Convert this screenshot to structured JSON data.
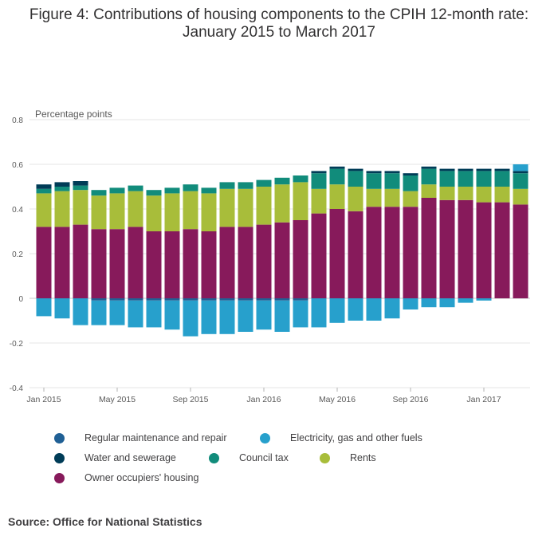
{
  "figure": {
    "title_line1": "Figure 4: Contributions of housing components to the CPIH 12-month rate:",
    "title_line2": "January 2015 to March 2017",
    "source": "Source: Office for National Statistics"
  },
  "chart_data": {
    "type": "bar",
    "stacked": true,
    "title": "Figure 4: Contributions of housing components to the CPIH 12-month rate: January 2015 to March 2017",
    "ylabel": "Percentage points",
    "ylim": [
      -0.4,
      0.8
    ],
    "yticks": [
      0.8,
      0.6,
      0.4,
      0.2,
      0,
      -0.2,
      -0.4
    ],
    "ytick_labels": [
      "0.8",
      "0.6",
      "0.4",
      "0.2",
      "0",
      "-0.2",
      "-0.4"
    ],
    "xtick_labels": [
      {
        "index": 0,
        "label": "Jan 2015"
      },
      {
        "index": 4,
        "label": "May 2015"
      },
      {
        "index": 8,
        "label": "Sep 2015"
      },
      {
        "index": 12,
        "label": "Jan 2016"
      },
      {
        "index": 16,
        "label": "May 2016"
      },
      {
        "index": 20,
        "label": "Sep 2016"
      },
      {
        "index": 24,
        "label": "Jan 2017"
      }
    ],
    "grid": true,
    "legend_position": "bottom",
    "categories": [
      "Jan 2015",
      "Feb 2015",
      "Mar 2015",
      "Apr 2015",
      "May 2015",
      "Jun 2015",
      "Jul 2015",
      "Aug 2015",
      "Sep 2015",
      "Oct 2015",
      "Nov 2015",
      "Dec 2015",
      "Jan 2016",
      "Feb 2016",
      "Mar 2016",
      "Apr 2016",
      "May 2016",
      "Jun 2016",
      "Jul 2016",
      "Aug 2016",
      "Sep 2016",
      "Oct 2016",
      "Nov 2016",
      "Dec 2016",
      "Jan 2017",
      "Feb 2017",
      "Mar 2017"
    ],
    "series": [
      {
        "name": "Owner occupiers' housing",
        "color": "#871A5B",
        "values": [
          0.32,
          0.32,
          0.33,
          0.31,
          0.31,
          0.32,
          0.3,
          0.3,
          0.31,
          0.3,
          0.32,
          0.32,
          0.33,
          0.34,
          0.35,
          0.38,
          0.4,
          0.39,
          0.41,
          0.41,
          0.41,
          0.45,
          0.44,
          0.44,
          0.43,
          0.43,
          0.42
        ]
      },
      {
        "name": "Rents",
        "color": "#A8BD3A",
        "values": [
          0.15,
          0.16,
          0.155,
          0.15,
          0.16,
          0.16,
          0.16,
          0.17,
          0.17,
          0.17,
          0.17,
          0.17,
          0.17,
          0.17,
          0.17,
          0.11,
          0.11,
          0.11,
          0.08,
          0.08,
          0.07,
          0.06,
          0.06,
          0.06,
          0.07,
          0.07,
          0.07
        ]
      },
      {
        "name": "Council tax",
        "color": "#118C7B",
        "values": [
          0.02,
          0.02,
          0.02,
          0.025,
          0.025,
          0.025,
          0.025,
          0.025,
          0.03,
          0.025,
          0.03,
          0.03,
          0.03,
          0.03,
          0.03,
          0.07,
          0.07,
          0.07,
          0.07,
          0.07,
          0.07,
          0.07,
          0.07,
          0.07,
          0.07,
          0.07,
          0.07
        ]
      },
      {
        "name": "Water and sewerage",
        "color": "#003C57",
        "values": [
          0.02,
          0.02,
          0.02,
          0,
          0,
          0,
          0,
          0,
          0,
          0,
          0,
          0,
          0,
          0,
          0,
          0.01,
          0.01,
          0.01,
          0.01,
          0.01,
          0.01,
          0.01,
          0.01,
          0.01,
          0.01,
          0.01,
          0.01
        ]
      },
      {
        "name": "Regular maintenance and repair",
        "color": "#206095",
        "values": [
          0,
          0,
          0,
          -0.01,
          -0.01,
          -0.01,
          -0.01,
          -0.01,
          -0.01,
          -0.01,
          -0.01,
          -0.01,
          -0.01,
          -0.01,
          -0.01,
          0,
          0,
          0,
          0,
          0,
          0,
          0,
          0,
          0,
          0,
          0,
          0
        ]
      },
      {
        "name": "Electricity, gas and other fuels",
        "color": "#27A0CC",
        "values": [
          -0.08,
          -0.09,
          -0.12,
          -0.11,
          -0.11,
          -0.12,
          -0.12,
          -0.13,
          -0.16,
          -0.15,
          -0.15,
          -0.14,
          -0.13,
          -0.14,
          -0.12,
          -0.13,
          -0.11,
          -0.1,
          -0.1,
          -0.09,
          -0.05,
          -0.04,
          -0.04,
          -0.02,
          -0.01,
          0,
          0.03
        ]
      }
    ]
  },
  "legend": {
    "items": [
      {
        "label": "Regular maintenance and repair",
        "color": "#206095"
      },
      {
        "label": "Electricity, gas and other fuels",
        "color": "#27A0CC"
      },
      {
        "label": "Water and sewerage",
        "color": "#003C57"
      },
      {
        "label": "Council tax",
        "color": "#118C7B"
      },
      {
        "label": "Rents",
        "color": "#A8BD3A"
      },
      {
        "label": "Owner occupiers' housing",
        "color": "#871A5B"
      }
    ]
  }
}
